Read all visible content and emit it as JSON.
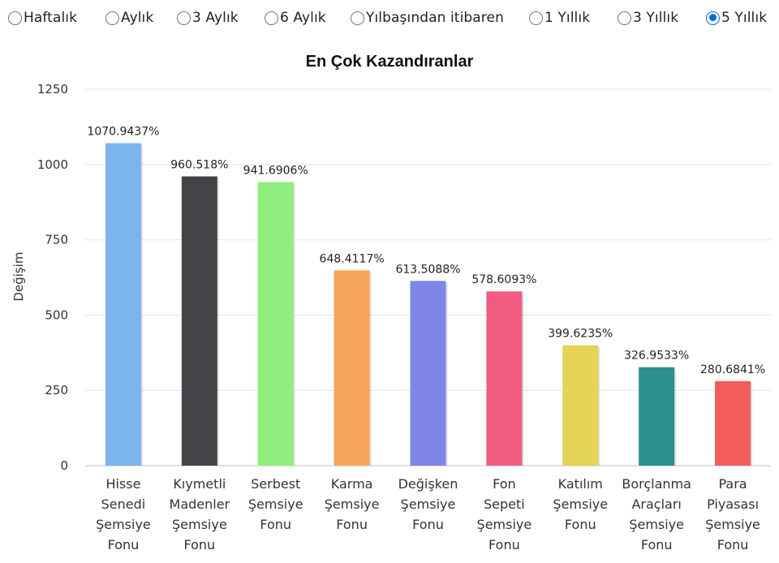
{
  "periods": {
    "options": [
      {
        "label": "Haftalık",
        "selected": false
      },
      {
        "label": "Aylık",
        "selected": false
      },
      {
        "label": "3 Aylık",
        "selected": false
      },
      {
        "label": "6 Aylık",
        "selected": false
      },
      {
        "label": "Yılbaşından itibaren",
        "selected": false
      },
      {
        "label": "1 Yıllık",
        "selected": false
      },
      {
        "label": "3 Yıllık",
        "selected": false
      },
      {
        "label": "5 Yıllık",
        "selected": true
      }
    ],
    "accent_color": "#0a6ed1"
  },
  "chart_data": {
    "type": "bar",
    "title": "En Çok Kazandıranlar",
    "xlabel": "",
    "ylabel": "Değişim",
    "ylim": [
      0,
      1250
    ],
    "yticks": [
      0,
      250,
      500,
      750,
      1000,
      1250
    ],
    "grid": true,
    "legend": "none",
    "categories": [
      [
        "Hisse",
        "Senedi",
        "Şemsiye",
        "Fonu"
      ],
      [
        "Kıymetli",
        "Madenler",
        "Şemsiye",
        "Fonu"
      ],
      [
        "Serbest",
        "Şemsiye",
        "Fonu"
      ],
      [
        "Karma",
        "Şemsiye",
        "Fonu"
      ],
      [
        "Değişken",
        "Şemsiye",
        "Fonu"
      ],
      [
        "Fon",
        "Sepeti",
        "Şemsiye",
        "Fonu"
      ],
      [
        "Katılım",
        "Şemsiye",
        "Fonu"
      ],
      [
        "Borçlanma",
        "Araçları",
        "Şemsiye",
        "Fonu"
      ],
      [
        "Para",
        "Piyasası",
        "Şemsiye",
        "Fonu"
      ]
    ],
    "values": [
      1070.9437,
      960.518,
      941.6906,
      648.4117,
      613.5088,
      578.6093,
      399.6235,
      326.9533,
      280.6841
    ],
    "data_labels": [
      "1070.9437%",
      "960.518%",
      "941.6906%",
      "648.4117%",
      "613.5088%",
      "578.6093%",
      "399.6235%",
      "326.9533%",
      "280.6841%"
    ],
    "colors": [
      "#7cb5ec",
      "#434348",
      "#90ed7d",
      "#f7a35c",
      "#8085e9",
      "#f15c80",
      "#e4d354",
      "#2b908f",
      "#f45b5b"
    ]
  }
}
